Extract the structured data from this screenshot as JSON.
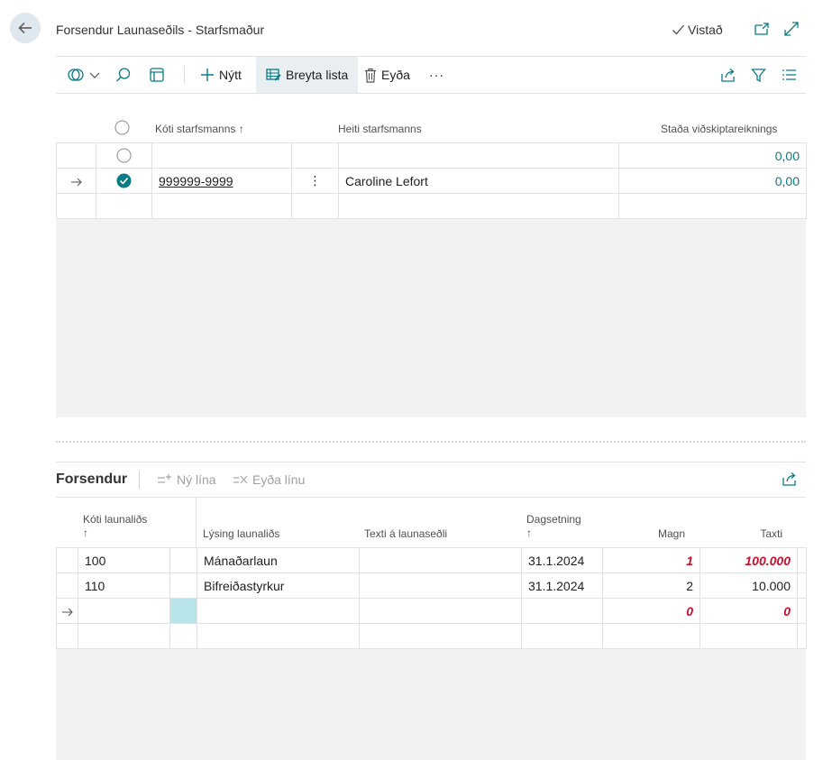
{
  "header": {
    "title": "Forsendur Launaseðils - Starfsmaður",
    "saved_label": "Vistað"
  },
  "toolbar": {
    "new_label": "Nýtt",
    "edit_list_label": "Breyta lista",
    "delete_label": "Eyða",
    "more_label": "···"
  },
  "list": {
    "columns": {
      "code": "Kóti starfsmanns",
      "code_sort": "↑",
      "name": "Heiti starfsmanns",
      "balance": "Staða viðskiptareiknings"
    },
    "rows": [
      {
        "code": "",
        "name": "",
        "balance": "0,00"
      },
      {
        "code": "999999-9999",
        "name": "Caroline Lefort",
        "balance": "0,00",
        "menu": "⋮"
      }
    ]
  },
  "subpage": {
    "title": "Forsendur",
    "new_line_label": "Ný lína",
    "delete_line_label": "Eyða línu",
    "columns": {
      "code": "Kóti launaliðs",
      "code_sort": "↑",
      "description": "Lýsing launaliðs",
      "payslip_text": "Texti á launaseðli",
      "date": "Dagsetning",
      "date_sort": "↑",
      "quantity": "Magn",
      "rate": "Taxti"
    },
    "rows": [
      {
        "code": "100",
        "description": "Mánaðarlaun",
        "payslip_text": "",
        "date": "31.1.2024",
        "quantity": "1",
        "rate": "100.000"
      },
      {
        "code": "110",
        "description": "Bifreiðastyrkur",
        "payslip_text": "",
        "date": "31.1.2024",
        "quantity": "2",
        "rate": "10.000"
      },
      {
        "code": "",
        "description": "",
        "payslip_text": "",
        "date": "",
        "quantity": "0",
        "rate": "0"
      }
    ]
  },
  "colors": {
    "accent": "#0b7b83",
    "error": "#c8102e",
    "back_button": "#dfe8ee"
  }
}
